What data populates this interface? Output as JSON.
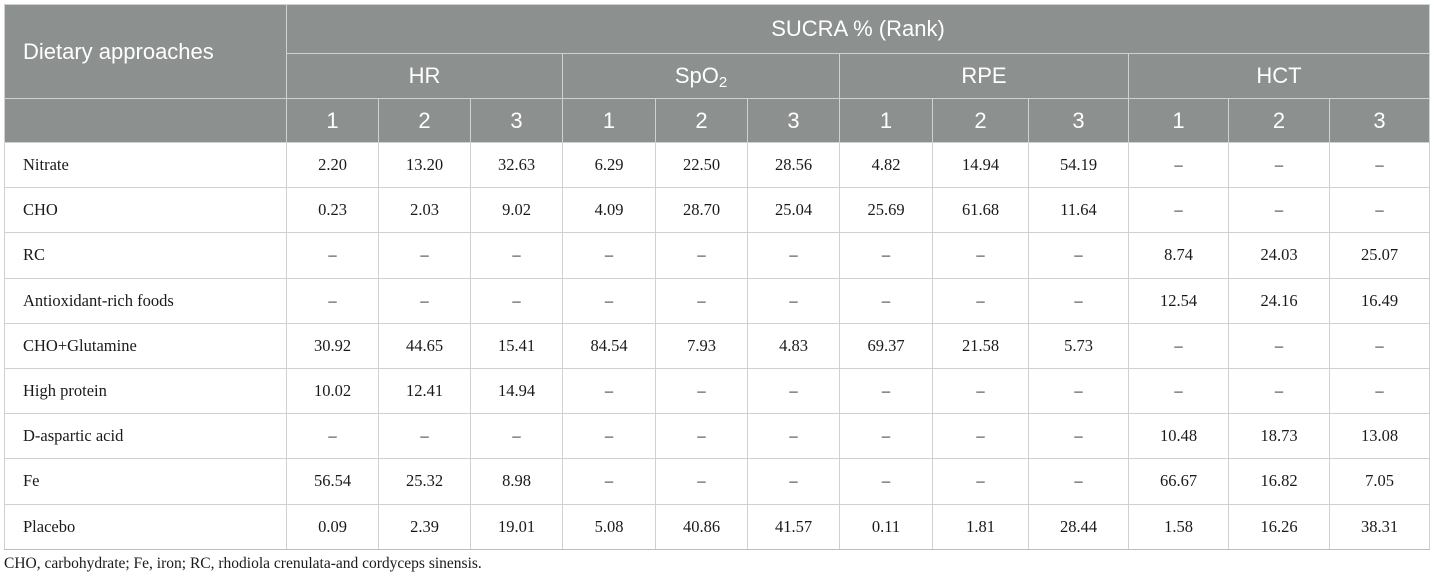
{
  "table": {
    "corner_header": "Dietary approaches",
    "super_header": "SUCRA % (Rank)",
    "groups": [
      {
        "name": "HR",
        "sub": ""
      },
      {
        "name": "SpO",
        "sub": "2"
      },
      {
        "name": "RPE",
        "sub": ""
      },
      {
        "name": "HCT",
        "sub": ""
      }
    ],
    "ranks": [
      "1",
      "2",
      "3",
      "1",
      "2",
      "3",
      "1",
      "2",
      "3",
      "1",
      "2",
      "3"
    ],
    "rows": [
      {
        "label": "Nitrate",
        "values": [
          "2.20",
          "13.20",
          "32.63",
          "6.29",
          "22.50",
          "28.56",
          "4.82",
          "14.94",
          "54.19",
          "–",
          "–",
          "–"
        ]
      },
      {
        "label": "CHO",
        "values": [
          "0.23",
          "2.03",
          "9.02",
          "4.09",
          "28.70",
          "25.04",
          "25.69",
          "61.68",
          "11.64",
          "–",
          "–",
          "–"
        ]
      },
      {
        "label": "RC",
        "values": [
          "–",
          "–",
          "–",
          "–",
          "–",
          "–",
          "–",
          "–",
          "–",
          "8.74",
          "24.03",
          "25.07"
        ]
      },
      {
        "label": "Antioxidant-rich foods",
        "values": [
          "–",
          "–",
          "–",
          "–",
          "–",
          "–",
          "–",
          "–",
          "–",
          "12.54",
          "24.16",
          "16.49"
        ]
      },
      {
        "label": "CHO+Glutamine",
        "values": [
          "30.92",
          "44.65",
          "15.41",
          "84.54",
          "7.93",
          "4.83",
          "69.37",
          "21.58",
          "5.73",
          "–",
          "–",
          "–"
        ]
      },
      {
        "label": "High protein",
        "values": [
          "10.02",
          "12.41",
          "14.94",
          "–",
          "–",
          "–",
          "–",
          "–",
          "–",
          "–",
          "–",
          "–"
        ]
      },
      {
        "label": "D-aspartic acid",
        "values": [
          "–",
          "–",
          "–",
          "–",
          "–",
          "–",
          "–",
          "–",
          "–",
          "10.48",
          "18.73",
          "13.08"
        ]
      },
      {
        "label": "Fe",
        "values": [
          "56.54",
          "25.32",
          "8.98",
          "–",
          "–",
          "–",
          "–",
          "–",
          "–",
          "66.67",
          "16.82",
          "7.05"
        ]
      },
      {
        "label": "Placebo",
        "values": [
          "0.09",
          "2.39",
          "19.01",
          "5.08",
          "40.86",
          "41.57",
          "0.11",
          "1.81",
          "28.44",
          "1.58",
          "16.26",
          "38.31"
        ]
      }
    ]
  },
  "footnote": "CHO, carbohydrate; Fe, iron; RC, rhodiola crenulata-and cordyceps sinensis.",
  "colors": {
    "header_bg": "#8c908f",
    "header_text": "#ffffff",
    "grid_line": "#d0d0d0"
  }
}
